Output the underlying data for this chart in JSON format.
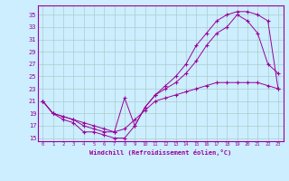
{
  "xlabel": "Windchill (Refroidissement éolien,°C)",
  "bg_color": "#cceeff",
  "grid_color": "#aacccc",
  "line_color": "#990099",
  "xlim": [
    -0.5,
    23.5
  ],
  "ylim": [
    14.5,
    36.5
  ],
  "yticks": [
    15,
    17,
    19,
    21,
    23,
    25,
    27,
    29,
    31,
    33,
    35
  ],
  "xticks": [
    0,
    1,
    2,
    3,
    4,
    5,
    6,
    7,
    8,
    9,
    10,
    11,
    12,
    13,
    14,
    15,
    16,
    17,
    18,
    19,
    20,
    21,
    22,
    23
  ],
  "curve1_x": [
    0,
    1,
    2,
    3,
    4,
    5,
    6,
    7,
    8,
    9,
    10,
    11,
    12,
    13,
    14,
    15,
    16,
    17,
    18,
    19,
    20,
    21,
    22,
    23
  ],
  "curve1_y": [
    21,
    19,
    18,
    17.5,
    16,
    16,
    15.5,
    15,
    15,
    17,
    20,
    22,
    23.5,
    25,
    27,
    30,
    32,
    34,
    35,
    35.5,
    35.5,
    35,
    34,
    23
  ],
  "curve2_x": [
    0,
    1,
    2,
    3,
    4,
    5,
    6,
    7,
    8,
    9,
    10,
    11,
    12,
    13,
    14,
    15,
    16,
    17,
    18,
    19,
    20,
    21,
    22,
    23
  ],
  "curve2_y": [
    21,
    19,
    18.5,
    18,
    17,
    16.5,
    16,
    16,
    21.5,
    17,
    20,
    22,
    23,
    24,
    25.5,
    27.5,
    30,
    32,
    33,
    35,
    34,
    32,
    27,
    25.5
  ],
  "curve3_x": [
    0,
    1,
    2,
    3,
    4,
    5,
    6,
    7,
    8,
    9,
    10,
    11,
    12,
    13,
    14,
    15,
    16,
    17,
    18,
    19,
    20,
    21,
    22,
    23
  ],
  "curve3_y": [
    21,
    19,
    18.5,
    18,
    17.5,
    17,
    16.5,
    16,
    16.5,
    18,
    19.5,
    21,
    21.5,
    22,
    22.5,
    23,
    23.5,
    24,
    24,
    24,
    24,
    24,
    23.5,
    23
  ]
}
